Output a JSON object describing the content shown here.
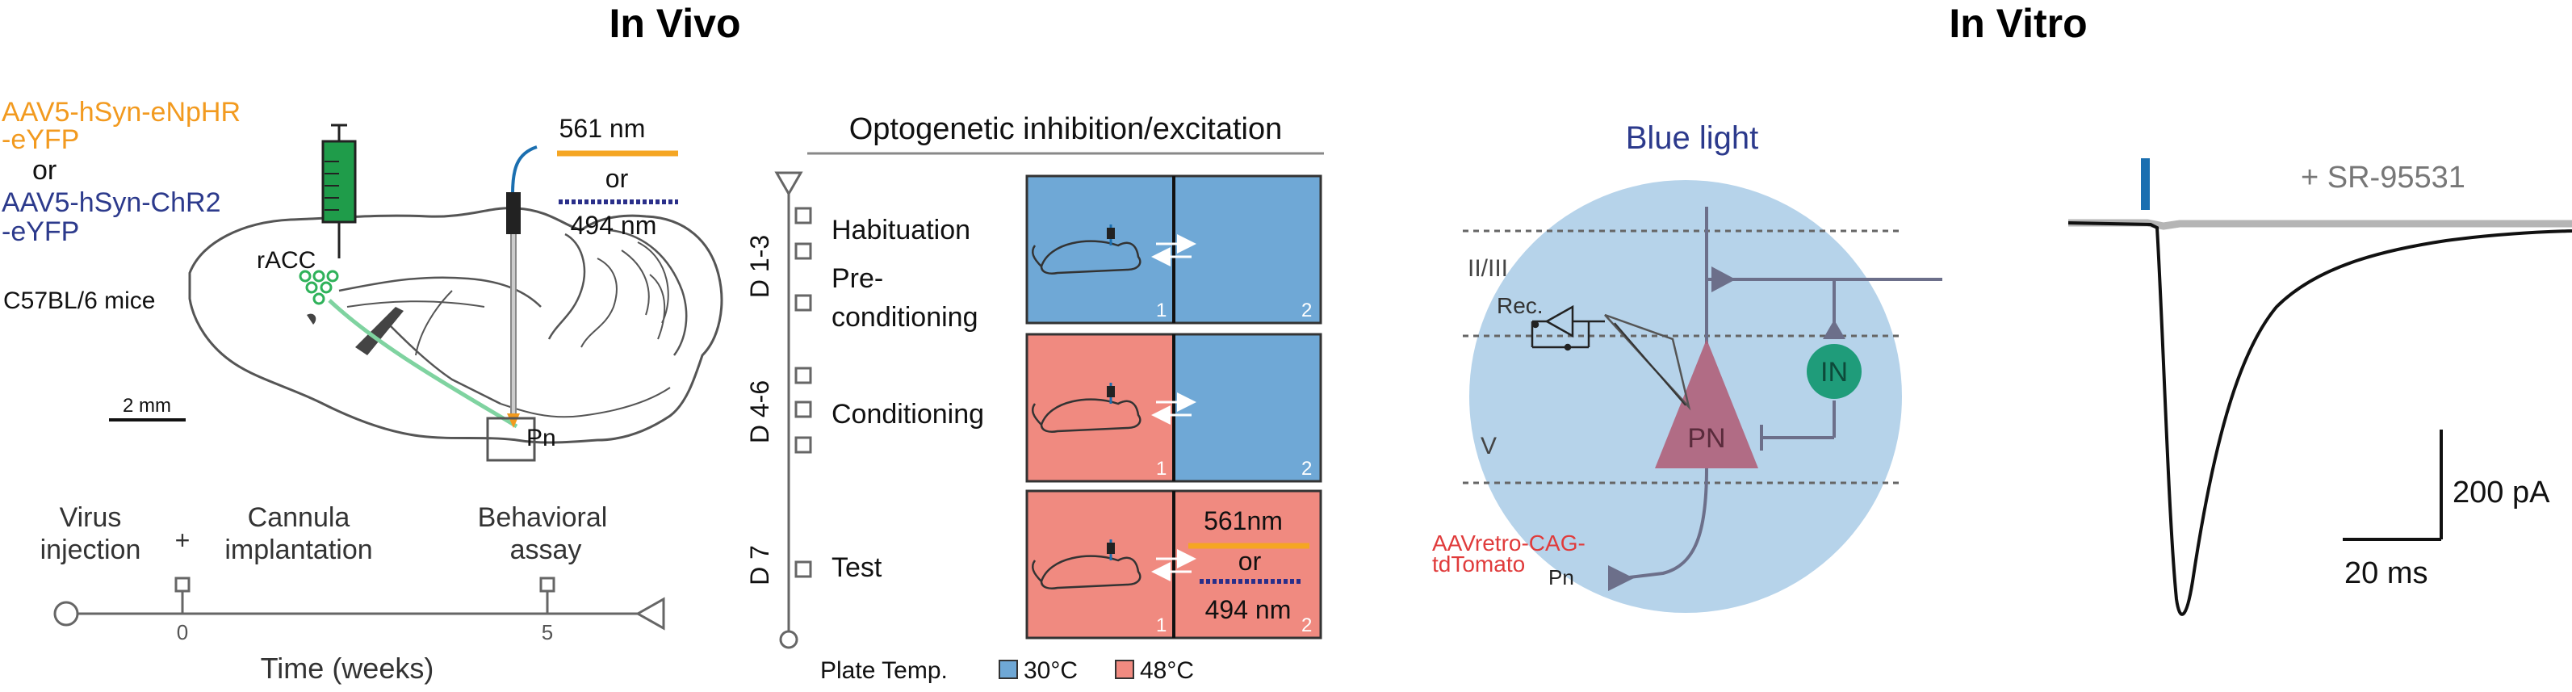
{
  "headings": {
    "in_vivo": "In Vivo",
    "in_vitro": "In Vitro"
  },
  "virus": {
    "line1": "AAV5-hSyn-eNpHR",
    "line2": "-eYFP",
    "or": "or",
    "line3": "AAV5-hSyn-ChR2",
    "line4": "-eYFP",
    "color_nphr": "#f29a1f",
    "color_chr2": "#2c3a8c"
  },
  "brain": {
    "racc": "rACC",
    "mice": "C57BL/6 mice",
    "pn": "Pn",
    "scale": "2 mm"
  },
  "light": {
    "nm561": "561 nm",
    "or": "or",
    "nm494": "494 nm"
  },
  "timeline": {
    "virus_injection_1": "Virus",
    "virus_injection_2": "injection",
    "plus": "+",
    "cannula_1": "Cannula",
    "cannula_2": "implantation",
    "assay_1": "Behavioral",
    "assay_2": "assay",
    "tick0": "0",
    "tick5": "5",
    "axis_label": "Time (weeks)"
  },
  "protocol": {
    "title": "Optogenetic inhibition/excitation",
    "d13": "D 1-3",
    "d46": "D 4-6",
    "d7": "D 7",
    "habituation": "Habituation",
    "pre1": "Pre-",
    "pre2": "conditioning",
    "conditioning": "Conditioning",
    "test": "Test",
    "ch1": "1",
    "ch2": "2",
    "test_561": "561nm",
    "test_or": "or",
    "test_494": "494 nm",
    "plate_label": "Plate Temp.",
    "cool": "30°C",
    "hot": "48°C",
    "cool_color": "#6fa8d6",
    "hot_color": "#f08a80"
  },
  "vitro": {
    "blue_light": "Blue light",
    "layer23": "II/III",
    "layer5": "V",
    "rec": "Rec.",
    "pn": "PN",
    "in": "IN",
    "aav1": "AAVretro-CAG-",
    "aav2": "tdTomato",
    "pn_small": "Pn",
    "drug": "+ SR-95531",
    "scale_pa": "200 pA",
    "scale_ms": "20 ms"
  }
}
